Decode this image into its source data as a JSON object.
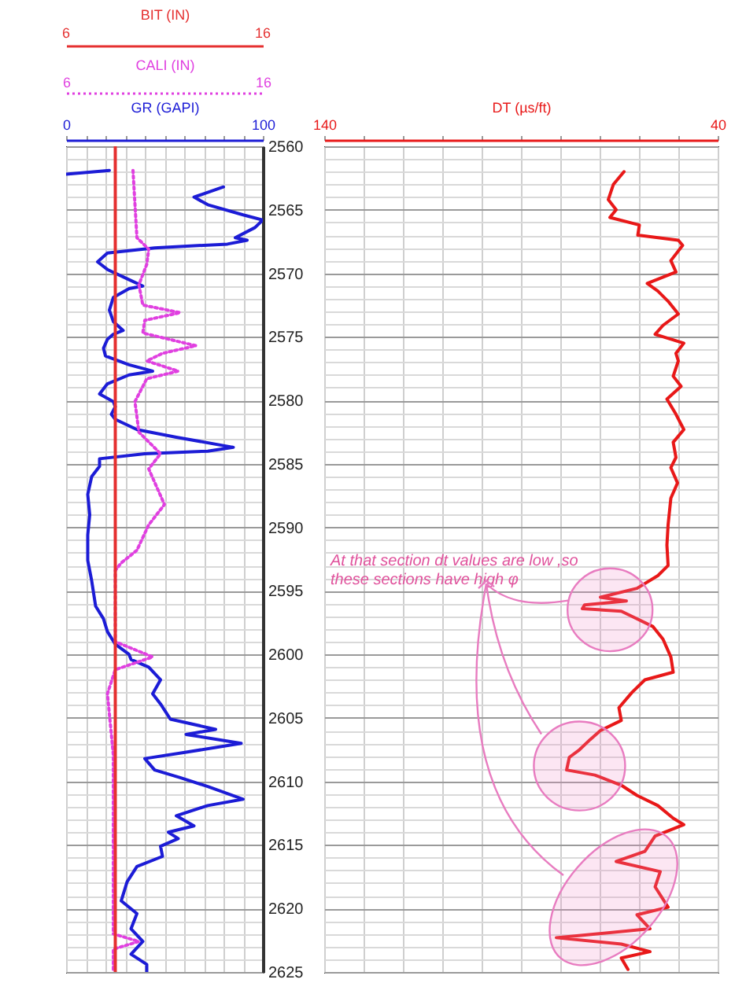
{
  "chart_data": [
    {
      "type": "line",
      "xlabel": "GR (GAPI)",
      "x2label": "CALI (IN)",
      "ref_lines": [
        {
          "axis": "x2",
          "value": 8.5,
          "label": "BIT (IN)",
          "color": "#e53030"
        }
      ],
      "annotations": [
        "6",
        "16"
      ],
      "xlim": [
        0,
        100
      ],
      "xticks": [
        0,
        {
          "value": 10,
          "label": null
        },
        {
          "value": 20,
          "label": null
        },
        {
          "value": 30,
          "label": null
        },
        {
          "value": 40,
          "label": null
        },
        {
          "value": 50,
          "label": null
        },
        {
          "value": 60,
          "label": null
        },
        {
          "value": 70,
          "label": null
        },
        {
          "value": 80,
          "label": null
        },
        {
          "value": 90,
          "label": null
        },
        100
      ],
      "x2lim": [
        6,
        16
      ],
      "x2ticks": [
        6,
        16
      ],
      "ylim": [
        2625,
        2560
      ],
      "yticks": [
        2560,
        {
          "value": 2561,
          "label": null
        },
        {
          "value": 2562,
          "label": null
        },
        {
          "value": 2563,
          "label": null
        },
        {
          "value": 2564,
          "label": null
        },
        2565,
        {
          "value": 2566,
          "label": null
        },
        {
          "value": 2567,
          "label": null
        },
        {
          "value": 2568,
          "label": null
        },
        {
          "value": 2569,
          "label": null
        },
        2570,
        {
          "value": 2571,
          "label": null
        },
        {
          "value": 2572,
          "label": null
        },
        {
          "value": 2573,
          "label": null
        },
        {
          "value": 2574,
          "label": null
        },
        2575,
        {
          "value": 2576,
          "label": null
        },
        {
          "value": 2577,
          "label": null
        },
        {
          "value": 2578,
          "label": null
        },
        {
          "value": 2579,
          "label": null
        },
        2580,
        {
          "value": 2581,
          "label": null
        },
        {
          "value": 2582,
          "label": null
        },
        {
          "value": 2583,
          "label": null
        },
        {
          "value": 2584,
          "label": null
        },
        2585,
        {
          "value": 2586,
          "label": null
        },
        {
          "value": 2587,
          "label": null
        },
        {
          "value": 2588,
          "label": null
        },
        {
          "value": 2589,
          "label": null
        },
        2590,
        {
          "value": 2591,
          "label": null
        },
        {
          "value": 2592,
          "label": null
        },
        {
          "value": 2593,
          "label": null
        },
        {
          "value": 2594,
          "label": null
        },
        2595,
        {
          "value": 2596,
          "label": null
        },
        {
          "value": 2597,
          "label": null
        },
        {
          "value": 2598,
          "label": null
        },
        {
          "value": 2599,
          "label": null
        },
        2600,
        {
          "value": 2601,
          "label": null
        },
        {
          "value": 2602,
          "label": null
        },
        {
          "value": 2603,
          "label": null
        },
        {
          "value": 2604,
          "label": null
        },
        2605,
        {
          "value": 2606,
          "label": null
        },
        {
          "value": 2607,
          "label": null
        },
        {
          "value": 2608,
          "label": null
        },
        {
          "value": 2609,
          "label": null
        },
        2610,
        {
          "value": 2611,
          "label": null
        },
        {
          "value": 2612,
          "label": null
        },
        {
          "value": 2613,
          "label": null
        },
        {
          "value": 2614,
          "label": null
        },
        2615,
        {
          "value": 2616,
          "label": null
        },
        {
          "value": 2617,
          "label": null
        },
        {
          "value": 2618,
          "label": null
        },
        {
          "value": 2619,
          "label": null
        },
        2620,
        {
          "value": 2621,
          "label": null
        },
        {
          "value": 2622,
          "label": null
        },
        {
          "value": 2623,
          "label": null
        },
        {
          "value": 2624,
          "label": null
        },
        2625
      ],
      "grid": true,
      "series": [
        {
          "color": "#1c1cd6",
          "line_style": "solid",
          "x": [
            0,
            22,
            null,
            80,
            65,
            72,
            90,
            100,
            96,
            86,
            92,
            82,
            45,
            21,
            16,
            21,
            32,
            39,
            32,
            24,
            22,
            24,
            29,
            24,
            21,
            19,
            20,
            32,
            44,
            32,
            21,
            17,
            24,
            25,
            23,
            25,
            36,
            56,
            85,
            72,
            40,
            17,
            17,
            13,
            11,
            12,
            11,
            11,
            13,
            15,
            19,
            21,
            25,
            32,
            33,
            42,
            48,
            44,
            48,
            53,
            76,
            61,
            89,
            61,
            40,
            45,
            58,
            72,
            90,
            72,
            56,
            65,
            52,
            57,
            48,
            49,
            36,
            31,
            28,
            36,
            33,
            39,
            33,
            41,
            41
          ],
          "values": [
            2562.2,
            2561.9,
            null,
            2563.2,
            2564.0,
            2564.6,
            2565.4,
            2565.8,
            2566.4,
            2567.2,
            2567.4,
            2567.7,
            2568.0,
            2568.4,
            2569.1,
            2569.7,
            2570.5,
            2571.0,
            2571.2,
            2571.9,
            2572.9,
            2573.8,
            2574.5,
            2574.8,
            2575.2,
            2575.9,
            2576.5,
            2577.2,
            2577.7,
            2578.0,
            2578.7,
            2579.5,
            2580.1,
            2580.5,
            2581.1,
            2581.5,
            2582.3,
            2582.9,
            2583.7,
            2584.0,
            2584.2,
            2584.6,
            2585.2,
            2586.0,
            2587.4,
            2589.0,
            2590.6,
            2592.6,
            2594.2,
            2596.2,
            2597.2,
            2598.2,
            2599.2,
            2600.0,
            2600.4,
            2601.0,
            2602.0,
            2603.1,
            2603.9,
            2605.1,
            2605.9,
            2606.3,
            2607.0,
            2607.7,
            2608.2,
            2609.1,
            2609.7,
            2610.4,
            2611.4,
            2611.9,
            2612.7,
            2613.5,
            2614.0,
            2614.5,
            2615.1,
            2615.9,
            2616.7,
            2617.9,
            2619.4,
            2620.4,
            2621.6,
            2622.6,
            2623.6,
            2624.4,
            2625.0
          ]
        },
        {
          "color": "#e040e0",
          "line_style": "dotted",
          "axis": "x2",
          "x": [
            9.4,
            9.6,
            10.2,
            10.1,
            9.7,
            9.9,
            11.8,
            10.0,
            9.9,
            12.6,
            10.9,
            10.1,
            11.7,
            10.1,
            9.5,
            9.7,
            10.8,
            10.2,
            11.0,
            10.2,
            9.6,
            8.8,
            8.5,
            8.5,
            10.4,
            8.5,
            8.1,
            8.4,
            8.4,
            9.7,
            8.4,
            8.4
          ],
          "values": [
            2561.9,
            2567.2,
            2568.1,
            2569.3,
            2570.9,
            2572.5,
            2573.1,
            2573.7,
            2574.7,
            2575.7,
            2576.3,
            2576.9,
            2577.7,
            2578.3,
            2580.1,
            2582.5,
            2584.2,
            2585.4,
            2588.2,
            2589.8,
            2591.8,
            2592.8,
            2593.4,
            2599.0,
            2600.2,
            2601.2,
            2603.1,
            2607.9,
            2622.0,
            2622.6,
            2623.2,
            2625.0
          ]
        }
      ]
    },
    {
      "type": "line",
      "xlabel": "DT (µs/ft)",
      "xlim": [
        140,
        40
      ],
      "xticks": [
        140,
        {
          "value": 130,
          "label": null
        },
        {
          "value": 120,
          "label": null
        },
        {
          "value": 110,
          "label": null
        },
        {
          "value": 100,
          "label": null
        },
        {
          "value": 90,
          "label": null
        },
        {
          "value": 80,
          "label": null
        },
        {
          "value": 70,
          "label": null
        },
        {
          "value": 60,
          "label": null
        },
        {
          "value": 50,
          "label": null
        },
        40
      ],
      "ylim": [
        2625,
        2560
      ],
      "yticks": [
        2560,
        {
          "value": 2561,
          "label": null
        },
        {
          "value": 2562,
          "label": null
        },
        {
          "value": 2563,
          "label": null
        },
        {
          "value": 2564,
          "label": null
        },
        2565,
        {
          "value": 2566,
          "label": null
        },
        {
          "value": 2567,
          "label": null
        },
        {
          "value": 2568,
          "label": null
        },
        {
          "value": 2569,
          "label": null
        },
        2570,
        {
          "value": 2571,
          "label": null
        },
        {
          "value": 2572,
          "label": null
        },
        {
          "value": 2573,
          "label": null
        },
        {
          "value": 2574,
          "label": null
        },
        2575,
        {
          "value": 2576,
          "label": null
        },
        {
          "value": 2577,
          "label": null
        },
        {
          "value": 2578,
          "label": null
        },
        {
          "value": 2579,
          "label": null
        },
        2580,
        {
          "value": 2581,
          "label": null
        },
        {
          "value": 2582,
          "label": null
        },
        {
          "value": 2583,
          "label": null
        },
        {
          "value": 2584,
          "label": null
        },
        2585,
        {
          "value": 2586,
          "label": null
        },
        {
          "value": 2587,
          "label": null
        },
        {
          "value": 2588,
          "label": null
        },
        {
          "value": 2589,
          "label": null
        },
        2590,
        {
          "value": 2591,
          "label": null
        },
        {
          "value": 2592,
          "label": null
        },
        {
          "value": 2593,
          "label": null
        },
        {
          "value": 2594,
          "label": null
        },
        2595,
        {
          "value": 2596,
          "label": null
        },
        {
          "value": 2597,
          "label": null
        },
        {
          "value": 2598,
          "label": null
        },
        {
          "value": 2599,
          "label": null
        },
        2600,
        {
          "value": 2601,
          "label": null
        },
        {
          "value": 2602,
          "label": null
        },
        {
          "value": 2603,
          "label": null
        },
        {
          "value": 2604,
          "label": null
        },
        2605,
        {
          "value": 2606,
          "label": null
        },
        {
          "value": 2607,
          "label": null
        },
        {
          "value": 2608,
          "label": null
        },
        {
          "value": 2609,
          "label": null
        },
        2610,
        {
          "value": 2611,
          "label": null
        },
        {
          "value": 2612,
          "label": null
        },
        {
          "value": 2613,
          "label": null
        },
        {
          "value": 2614,
          "label": null
        },
        2615,
        {
          "value": 2616,
          "label": null
        },
        {
          "value": 2617,
          "label": null
        },
        {
          "value": 2618,
          "label": null
        },
        {
          "value": 2619,
          "label": null
        },
        2620,
        {
          "value": 2621,
          "label": null
        },
        {
          "value": 2622,
          "label": null
        },
        {
          "value": 2623,
          "label": null
        },
        {
          "value": 2624,
          "label": null
        },
        2625
      ],
      "grid": true,
      "tick_labels": "x",
      "annotations": [
        "At that section dt values are low ,so\nthese sections have high φ"
      ],
      "series": [
        {
          "color": "#e81818",
          "line_style": "solid",
          "x": [
            63.8,
            66.5,
            67.8,
            65.8,
            67.4,
            59.9,
            60.3,
            50.0,
            48.9,
            51.9,
            50.6,
            57.9,
            55.2,
            52.6,
            50.0,
            53.9,
            55.9,
            48.6,
            50.6,
            50.0,
            51.3,
            49.3,
            52.9,
            50.6,
            48.6,
            51.3,
            50.6,
            51.9,
            50.2,
            51.9,
            52.6,
            52.9,
            52.6,
            55.2,
            60.5,
            69.8,
            63.2,
            73.8,
            74.4,
            64.5,
            61.8,
            56.5,
            53.9,
            51.9,
            51.3,
            58.5,
            61.8,
            65.1,
            64.5,
            69.8,
            72.4,
            75.1,
            77.7,
            78.4,
            71.2,
            64.5,
            60.5,
            55.2,
            51.3,
            48.6,
            55.9,
            58.5,
            65.8,
            54.6,
            55.9,
            52.6,
            60.5,
            57.2,
            81.0,
            64.5,
            57.2,
            64.5,
            62.8
          ],
          "values": [
            2562.0,
            2563.0,
            2564.2,
            2565.0,
            2565.6,
            2566.2,
            2567.0,
            2567.4,
            2567.8,
            2569.0,
            2569.9,
            2570.8,
            2571.4,
            2572.2,
            2573.2,
            2574.1,
            2574.8,
            2575.5,
            2576.3,
            2576.9,
            2578.1,
            2578.9,
            2579.9,
            2581.1,
            2582.3,
            2583.3,
            2584.5,
            2585.3,
            2586.5,
            2587.7,
            2589.8,
            2591.4,
            2593.0,
            2593.8,
            2594.8,
            2595.5,
            2595.8,
            2596.1,
            2596.4,
            2596.6,
            2597.0,
            2597.8,
            2598.8,
            2600.2,
            2601.4,
            2602.0,
            2603.0,
            2604.2,
            2605.2,
            2606.0,
            2606.7,
            2607.5,
            2608.1,
            2609.1,
            2609.5,
            2610.3,
            2611.1,
            2611.9,
            2612.9,
            2613.4,
            2614.3,
            2615.5,
            2616.3,
            2617.1,
            2618.3,
            2619.9,
            2620.5,
            2621.6,
            2622.3,
            2622.8,
            2623.4,
            2623.9,
            2624.8
          ]
        }
      ]
    }
  ]
}
